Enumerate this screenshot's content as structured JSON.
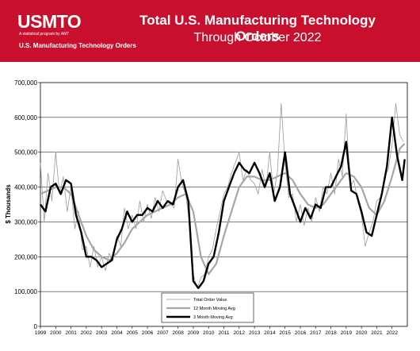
{
  "header": {
    "logo_text": "USMTO",
    "logo_subtitle": "A statistical program by AMT",
    "caption": "U.S. Manufacturing Technology Orders",
    "title_line1": "Total U.S. Manufacturing Technology Orders",
    "title_line2": "Through October 2022",
    "banner_color": "#c8102e"
  },
  "chart_data": {
    "type": "line",
    "ylabel": "$ Thousands",
    "ylim": [
      0,
      700000
    ],
    "xlim": [
      1999.0,
      2023.0
    ],
    "y_ticks": [
      0,
      100000,
      200000,
      300000,
      400000,
      500000,
      600000,
      700000
    ],
    "y_tick_labels": [
      "0",
      "100,000",
      "200,000",
      "300,000",
      "400,000",
      "500,000",
      "600,000",
      "700,000"
    ],
    "x_tick_labels": [
      "1999",
      "2000",
      "2001",
      "2002",
      "2003",
      "2004",
      "2005",
      "2006",
      "2007",
      "2008",
      "2009",
      "2010",
      "2011",
      "2012",
      "2013",
      "2014",
      "2015",
      "2016",
      "2017",
      "2018",
      "2019",
      "2020",
      "2021",
      "2022"
    ],
    "grid": "horizontal",
    "legend_position": "bottom-center",
    "series": [
      {
        "name": "Total Order Value",
        "color": "#9a9a9a",
        "x": [
          1999.0,
          1999.25,
          1999.5,
          1999.75,
          2000.0,
          2000.25,
          2000.5,
          2000.75,
          2001.0,
          2001.25,
          2001.5,
          2001.75,
          2002.0,
          2002.25,
          2002.5,
          2002.75,
          2003.0,
          2003.25,
          2003.5,
          2003.75,
          2004.0,
          2004.25,
          2004.5,
          2004.75,
          2005.0,
          2005.25,
          2005.5,
          2005.75,
          2006.0,
          2006.25,
          2006.5,
          2006.75,
          2007.0,
          2007.25,
          2007.5,
          2007.75,
          2008.0,
          2008.25,
          2008.5,
          2008.75,
          2009.0,
          2009.25,
          2009.5,
          2009.75,
          2010.0,
          2010.25,
          2010.5,
          2010.75,
          2011.0,
          2011.25,
          2011.5,
          2011.75,
          2012.0,
          2012.25,
          2012.5,
          2012.75,
          2013.0,
          2013.25,
          2013.5,
          2013.75,
          2014.0,
          2014.25,
          2014.5,
          2014.75,
          2015.0,
          2015.25,
          2015.5,
          2015.75,
          2016.0,
          2016.25,
          2016.5,
          2016.75,
          2017.0,
          2017.25,
          2017.5,
          2017.75,
          2018.0,
          2018.25,
          2018.5,
          2018.75,
          2019.0,
          2019.25,
          2019.5,
          2019.75,
          2020.0,
          2020.25,
          2020.5,
          2020.75,
          2021.0,
          2021.25,
          2021.5,
          2021.75,
          2022.0,
          2022.25,
          2022.5,
          2022.75
        ],
        "values": [
          470000,
          300000,
          440000,
          360000,
          500000,
          380000,
          430000,
          330000,
          400000,
          280000,
          330000,
          220000,
          230000,
          170000,
          230000,
          170000,
          200000,
          160000,
          210000,
          190000,
          260000,
          230000,
          340000,
          280000,
          320000,
          280000,
          360000,
          300000,
          350000,
          310000,
          370000,
          330000,
          390000,
          360000,
          350000,
          340000,
          480000,
          410000,
          380000,
          300000,
          150000,
          110000,
          140000,
          150000,
          200000,
          220000,
          280000,
          330000,
          380000,
          400000,
          440000,
          470000,
          500000,
          420000,
          450000,
          420000,
          410000,
          380000,
          450000,
          400000,
          500000,
          380000,
          440000,
          640000,
          470000,
          370000,
          380000,
          300000,
          350000,
          290000,
          340000,
          300000,
          370000,
          330000,
          400000,
          380000,
          440000,
          380000,
          480000,
          430000,
          610000,
          400000,
          420000,
          360000,
          320000,
          230000,
          270000,
          300000,
          360000,
          370000,
          430000,
          450000,
          520000,
          640000,
          550000,
          530000
        ]
      },
      {
        "name": "12 Month Moving Avg",
        "color": "#a6a6a6",
        "x": [
          1999.0,
          1999.5,
          2000.0,
          2000.5,
          2001.0,
          2001.5,
          2002.0,
          2002.5,
          2003.0,
          2003.5,
          2004.0,
          2004.5,
          2005.0,
          2005.5,
          2006.0,
          2006.5,
          2007.0,
          2007.5,
          2008.0,
          2008.5,
          2009.0,
          2009.5,
          2010.0,
          2010.5,
          2011.0,
          2011.5,
          2012.0,
          2012.5,
          2013.0,
          2013.5,
          2014.0,
          2014.5,
          2015.0,
          2015.5,
          2016.0,
          2016.5,
          2017.0,
          2017.5,
          2018.0,
          2018.5,
          2019.0,
          2019.5,
          2020.0,
          2020.5,
          2021.0,
          2021.5,
          2022.0,
          2022.5,
          2022.83
        ],
        "values": [
          380000,
          390000,
          400000,
          400000,
          380000,
          320000,
          260000,
          220000,
          200000,
          190000,
          210000,
          240000,
          280000,
          300000,
          320000,
          330000,
          340000,
          350000,
          370000,
          380000,
          330000,
          200000,
          150000,
          180000,
          260000,
          330000,
          400000,
          430000,
          430000,
          420000,
          420000,
          430000,
          440000,
          420000,
          380000,
          350000,
          340000,
          350000,
          380000,
          410000,
          440000,
          430000,
          400000,
          340000,
          320000,
          360000,
          430000,
          510000,
          525000
        ]
      },
      {
        "name": "3 Month Moving Avg",
        "color": "#000000",
        "x": [
          1999.0,
          1999.33,
          1999.67,
          2000.0,
          2000.33,
          2000.67,
          2001.0,
          2001.33,
          2001.67,
          2002.0,
          2002.33,
          2002.67,
          2003.0,
          2003.33,
          2003.67,
          2004.0,
          2004.33,
          2004.67,
          2005.0,
          2005.33,
          2005.67,
          2006.0,
          2006.33,
          2006.67,
          2007.0,
          2007.33,
          2007.67,
          2008.0,
          2008.33,
          2008.67,
          2009.0,
          2009.33,
          2009.67,
          2010.0,
          2010.33,
          2010.67,
          2011.0,
          2011.33,
          2011.67,
          2012.0,
          2012.33,
          2012.67,
          2013.0,
          2013.33,
          2013.67,
          2014.0,
          2014.33,
          2014.67,
          2015.0,
          2015.33,
          2015.67,
          2016.0,
          2016.33,
          2016.67,
          2017.0,
          2017.33,
          2017.67,
          2018.0,
          2018.33,
          2018.67,
          2019.0,
          2019.33,
          2019.67,
          2020.0,
          2020.33,
          2020.67,
          2021.0,
          2021.33,
          2021.67,
          2022.0,
          2022.33,
          2022.67,
          2022.83
        ],
        "values": [
          350000,
          330000,
          400000,
          410000,
          380000,
          420000,
          410000,
          320000,
          270000,
          200000,
          200000,
          190000,
          170000,
          180000,
          190000,
          250000,
          280000,
          330000,
          300000,
          320000,
          320000,
          340000,
          330000,
          360000,
          340000,
          360000,
          350000,
          400000,
          420000,
          360000,
          130000,
          110000,
          130000,
          180000,
          200000,
          270000,
          360000,
          400000,
          440000,
          470000,
          450000,
          440000,
          470000,
          440000,
          400000,
          440000,
          360000,
          400000,
          500000,
          380000,
          340000,
          300000,
          340000,
          310000,
          350000,
          340000,
          400000,
          400000,
          430000,
          460000,
          530000,
          390000,
          380000,
          330000,
          270000,
          260000,
          320000,
          380000,
          460000,
          600000,
          490000,
          420000,
          480000
        ]
      }
    ]
  }
}
